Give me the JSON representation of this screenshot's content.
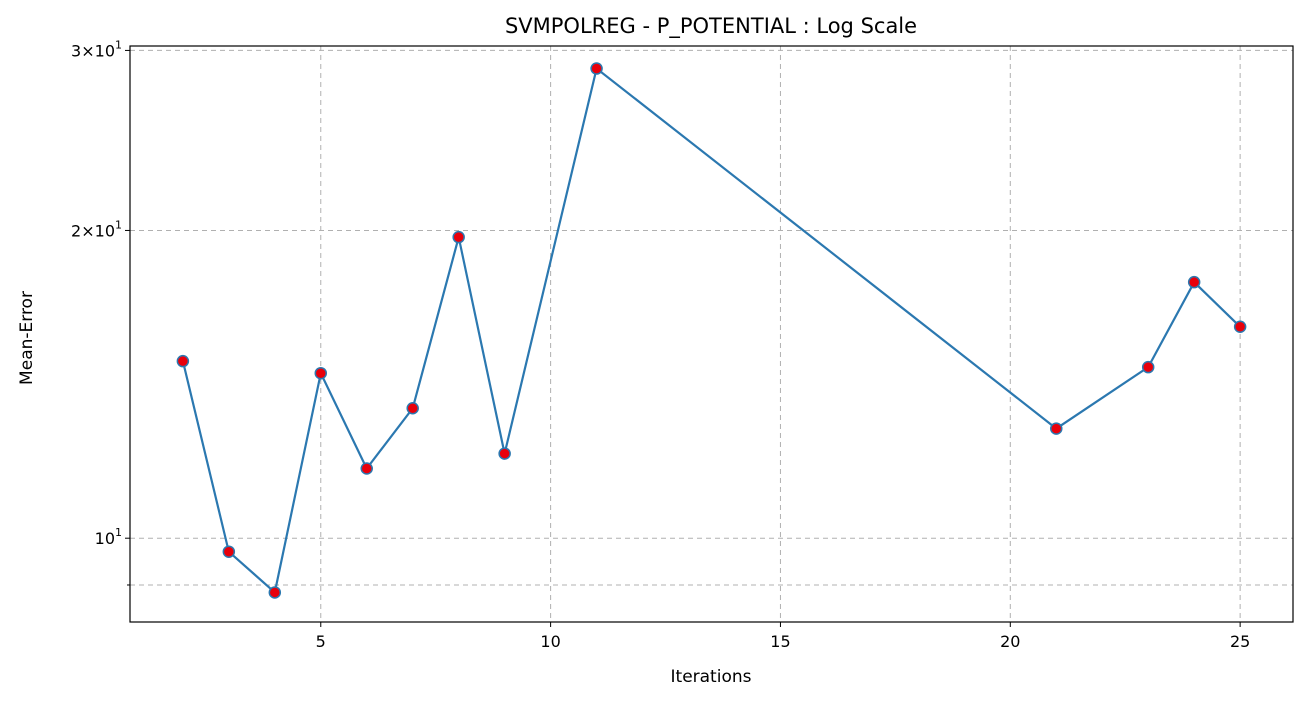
{
  "chart_data": {
    "type": "line",
    "title": "SVMPOLREG - P_POTENTIAL : Log Scale",
    "xlabel": "Iterations",
    "ylabel": "Mean-Error",
    "yscale": "log",
    "xlim": [
      0.85,
      26.15
    ],
    "ylim": [
      8.28,
      30.3
    ],
    "grid": true,
    "x_ticks": [
      {
        "value": 5,
        "label": "5"
      },
      {
        "value": 10,
        "label": "10"
      },
      {
        "value": 15,
        "label": "15"
      },
      {
        "value": 20,
        "label": "20"
      },
      {
        "value": 25,
        "label": "25"
      }
    ],
    "y_major_ticks": [
      {
        "value": 10,
        "base": "10",
        "exp": "1",
        "prefix": ""
      },
      {
        "value": 20,
        "base": "10",
        "exp": "1",
        "prefix": "2×"
      },
      {
        "value": 30,
        "base": "10",
        "exp": "1",
        "prefix": "3×"
      }
    ],
    "y_minor_ticks": [
      9
    ],
    "line_color": "#2b78b0",
    "marker_color": "#e8000b",
    "series": [
      {
        "x": [
          2,
          3,
          4,
          5,
          6,
          7,
          8,
          9,
          11,
          21,
          23,
          24,
          25
        ],
        "values": [
          14.9,
          9.7,
          8.85,
          14.5,
          11.7,
          13.4,
          19.7,
          12.1,
          28.8,
          12.8,
          14.7,
          17.8,
          16.1
        ]
      }
    ]
  }
}
